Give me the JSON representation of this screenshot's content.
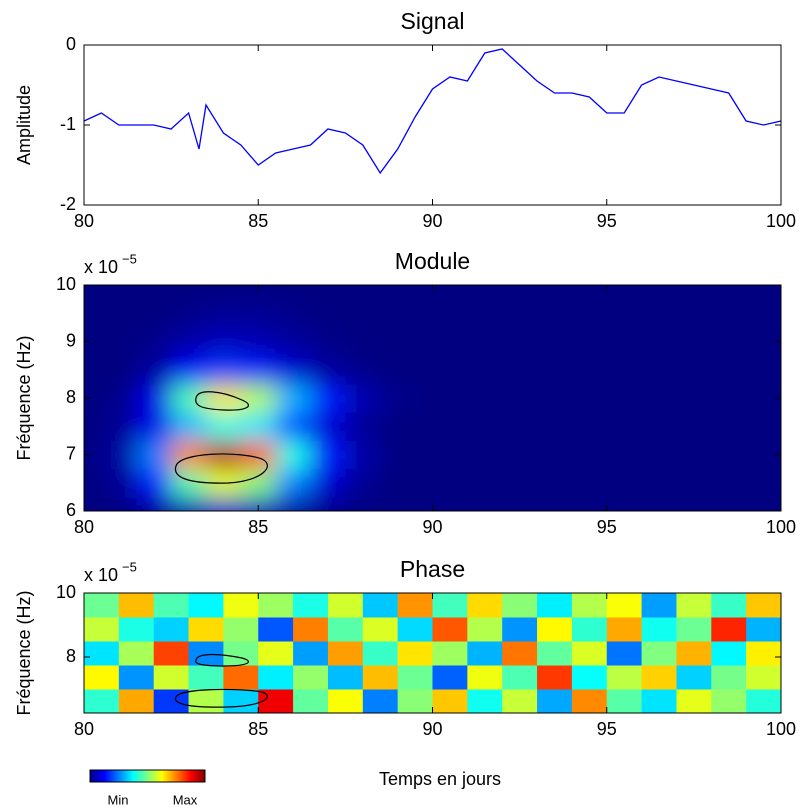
{
  "chart_data": [
    {
      "type": "line",
      "title": "Signal",
      "ylabel": "Amplitude",
      "color": "#0000ff",
      "x": [
        80,
        80.5,
        81,
        82,
        82.5,
        83,
        83.3,
        83.5,
        84,
        84.5,
        85,
        85.5,
        86,
        86.5,
        87,
        87.5,
        88,
        88.5,
        89,
        89.5,
        90,
        90.5,
        91,
        91.5,
        92,
        92.5,
        93,
        93.5,
        94,
        94.5,
        95,
        95.5,
        96,
        96.5,
        97,
        97.5,
        98,
        98.5,
        99,
        99.5,
        100
      ],
      "values": [
        -0.95,
        -0.85,
        -1.0,
        -1.0,
        -1.05,
        -0.85,
        -1.3,
        -0.75,
        -1.1,
        -1.25,
        -1.5,
        -1.35,
        -1.3,
        -1.25,
        -1.05,
        -1.1,
        -1.25,
        -1.6,
        -1.3,
        -0.9,
        -0.55,
        -0.4,
        -0.45,
        -0.1,
        -0.05,
        -0.25,
        -0.45,
        -0.6,
        -0.6,
        -0.65,
        -0.85,
        -0.85,
        -0.5,
        -0.4,
        -0.45,
        -0.5,
        -0.55,
        -0.6,
        -0.95,
        -1.0,
        -0.95
      ],
      "xlim": [
        80,
        100
      ],
      "xticks": [
        80,
        85,
        90,
        95,
        100
      ],
      "ylim": [
        -2,
        0
      ],
      "yticks": [
        -2,
        -1,
        0
      ]
    },
    {
      "type": "heatmap",
      "title": "Module",
      "ylabel": "Fréquence (Hz)",
      "y_multiplier": "x 10",
      "y_exponent": "−5",
      "x": [
        80,
        81,
        82,
        83,
        84,
        85,
        86,
        87,
        88,
        89,
        90,
        91,
        92,
        93,
        94,
        95,
        96,
        97,
        98,
        99,
        100
      ],
      "y": [
        6,
        6.5,
        7,
        7.5,
        8,
        8.5,
        9,
        9.5,
        10
      ],
      "z": [
        [
          0,
          0,
          0.02,
          0.05,
          0.08,
          0.06,
          0.03,
          0.01,
          0,
          0,
          0,
          0,
          0,
          0,
          0,
          0,
          0,
          0,
          0,
          0,
          0
        ],
        [
          0,
          0.02,
          0.15,
          0.45,
          0.6,
          0.5,
          0.25,
          0.08,
          0.02,
          0,
          0,
          0,
          0,
          0,
          0,
          0,
          0,
          0,
          0,
          0,
          0
        ],
        [
          0,
          0.03,
          0.25,
          0.75,
          0.95,
          0.8,
          0.4,
          0.15,
          0.04,
          0,
          0,
          0,
          0,
          0,
          0,
          0,
          0,
          0,
          0,
          0,
          0
        ],
        [
          0,
          0.02,
          0.1,
          0.3,
          0.4,
          0.35,
          0.2,
          0.08,
          0.02,
          0,
          0,
          0,
          0,
          0,
          0,
          0,
          0,
          0,
          0,
          0,
          0
        ],
        [
          0,
          0.01,
          0.1,
          0.45,
          0.65,
          0.55,
          0.3,
          0.15,
          0.05,
          0.01,
          0,
          0,
          0,
          0,
          0,
          0,
          0,
          0,
          0,
          0,
          0
        ],
        [
          0,
          0,
          0.03,
          0.12,
          0.18,
          0.15,
          0.08,
          0.03,
          0.01,
          0,
          0,
          0,
          0,
          0,
          0,
          0,
          0,
          0,
          0,
          0,
          0
        ],
        [
          0,
          0,
          0.01,
          0.04,
          0.06,
          0.05,
          0.03,
          0.01,
          0,
          0,
          0,
          0,
          0,
          0,
          0,
          0,
          0,
          0,
          0,
          0,
          0
        ],
        [
          0,
          0,
          0,
          0.01,
          0.02,
          0.02,
          0.01,
          0,
          0,
          0,
          0,
          0,
          0,
          0,
          0,
          0,
          0,
          0,
          0,
          0,
          0
        ],
        [
          0,
          0,
          0,
          0,
          0,
          0,
          0,
          0,
          0,
          0,
          0,
          0,
          0,
          0,
          0,
          0,
          0,
          0,
          0,
          0,
          0
        ]
      ],
      "xlim": [
        80,
        100
      ],
      "xticks": [
        80,
        85,
        90,
        95,
        100
      ],
      "ylim": [
        6,
        10
      ],
      "yticks": [
        6,
        7,
        8,
        9,
        10
      ]
    },
    {
      "type": "heatmap",
      "title": "Phase",
      "ylabel": "Fréquence (Hz)",
      "y_multiplier": "x 10",
      "y_exponent": "−5",
      "xlabel": "Temps en jours",
      "colorbar_min": "Min",
      "colorbar_max": "Max",
      "x": [
        80.5,
        81.5,
        82.5,
        83.5,
        84.5,
        85.5,
        86.5,
        87.5,
        88.5,
        89.5,
        90.5,
        91.5,
        92.5,
        93.5,
        94.5,
        95.5,
        96.5,
        97.5,
        98.5,
        99.5
      ],
      "y": [
        6.625,
        7.375,
        8.125,
        8.875,
        9.625
      ],
      "z": [
        [
          0.42,
          0.71,
          0.18,
          0.55,
          0.33,
          0.89,
          0.47,
          0.62,
          0.25,
          0.51,
          0.68,
          0.39,
          0.57,
          0.29,
          0.74,
          0.46,
          0.35,
          0.6,
          0.52,
          0.41
        ],
        [
          0.63,
          0.27,
          0.58,
          0.44,
          0.77,
          0.36,
          0.52,
          0.31,
          0.69,
          0.48,
          0.22,
          0.61,
          0.45,
          0.82,
          0.38,
          0.56,
          0.67,
          0.33,
          0.49,
          0.58
        ],
        [
          0.35,
          0.54,
          0.81,
          0.26,
          0.49,
          0.6,
          0.28,
          0.72,
          0.43,
          0.65,
          0.53,
          0.3,
          0.76,
          0.47,
          0.59,
          0.24,
          0.5,
          0.7,
          0.37,
          0.64
        ],
        [
          0.57,
          0.4,
          0.33,
          0.66,
          0.52,
          0.21,
          0.75,
          0.46,
          0.59,
          0.34,
          0.79,
          0.55,
          0.27,
          0.63,
          0.42,
          0.71,
          0.39,
          0.48,
          0.84,
          0.3
        ],
        [
          0.48,
          0.69,
          0.45,
          0.37,
          0.61,
          0.53,
          0.4,
          0.58,
          0.32,
          0.73,
          0.44,
          0.66,
          0.51,
          0.36,
          0.55,
          0.62,
          0.28,
          0.57,
          0.43,
          0.68
        ]
      ],
      "xlim": [
        80,
        100
      ],
      "xticks": [
        80,
        85,
        90,
        95,
        100
      ],
      "ylim": [
        6.25,
        10
      ],
      "yticks": [
        8,
        10
      ]
    }
  ]
}
